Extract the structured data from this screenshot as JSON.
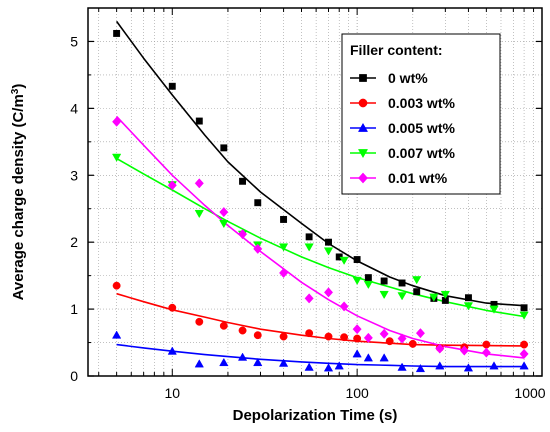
{
  "chart_data": {
    "type": "scatter",
    "xlabel": "Depolarization Time (s)",
    "ylabel": "Average charge density (C/m",
    "ylabel_sup": "3",
    "ylabel_close": ")",
    "xscale": "log",
    "xlim": [
      3.5,
      1000
    ],
    "ylim": [
      0,
      5.5
    ],
    "x_ticks": [
      10,
      100,
      1000
    ],
    "x_tick_labels": [
      "10",
      "100",
      "1000"
    ],
    "y_ticks": [
      0,
      1,
      2,
      3,
      4,
      5
    ],
    "y_tick_labels": [
      "0",
      "1",
      "2",
      "3",
      "4",
      "5"
    ],
    "grid": true,
    "legend": {
      "title": "Filler content:",
      "position": "top-right"
    },
    "series": [
      {
        "name": "0 wt%",
        "color": "#000000",
        "marker": "square",
        "points": [
          [
            5,
            5.12
          ],
          [
            10,
            4.33
          ],
          [
            14,
            3.81
          ],
          [
            19,
            3.41
          ],
          [
            24,
            2.91
          ],
          [
            29,
            2.59
          ],
          [
            40,
            2.34
          ],
          [
            55,
            2.08
          ],
          [
            70,
            2.0
          ],
          [
            80,
            1.78
          ],
          [
            100,
            1.74
          ],
          [
            115,
            1.47
          ],
          [
            140,
            1.42
          ],
          [
            175,
            1.39
          ],
          [
            210,
            1.26
          ],
          [
            260,
            1.16
          ],
          [
            300,
            1.13
          ],
          [
            400,
            1.17
          ],
          [
            550,
            1.07
          ],
          [
            800,
            1.02
          ]
        ],
        "fit": [
          [
            5,
            5.3
          ],
          [
            7,
            4.75
          ],
          [
            10,
            4.2
          ],
          [
            15,
            3.6
          ],
          [
            20,
            3.2
          ],
          [
            30,
            2.75
          ],
          [
            50,
            2.28
          ],
          [
            70,
            1.98
          ],
          [
            100,
            1.72
          ],
          [
            150,
            1.48
          ],
          [
            200,
            1.35
          ],
          [
            300,
            1.2
          ],
          [
            500,
            1.09
          ],
          [
            800,
            1.05
          ]
        ]
      },
      {
        "name": "0.003 wt%",
        "color": "#ff0000",
        "marker": "circle",
        "points": [
          [
            5,
            1.35
          ],
          [
            10,
            1.02
          ],
          [
            14,
            0.81
          ],
          [
            19,
            0.75
          ],
          [
            24,
            0.68
          ],
          [
            29,
            0.61
          ],
          [
            40,
            0.59
          ],
          [
            55,
            0.64
          ],
          [
            70,
            0.59
          ],
          [
            85,
            0.58
          ],
          [
            100,
            0.56
          ],
          [
            150,
            0.52
          ],
          [
            200,
            0.48
          ],
          [
            280,
            0.42
          ],
          [
            380,
            0.43
          ],
          [
            500,
            0.47
          ],
          [
            800,
            0.47
          ]
        ],
        "fit": [
          [
            5,
            1.23
          ],
          [
            7,
            1.11
          ],
          [
            10,
            0.99
          ],
          [
            15,
            0.88
          ],
          [
            20,
            0.8
          ],
          [
            30,
            0.7
          ],
          [
            50,
            0.61
          ],
          [
            70,
            0.56
          ],
          [
            100,
            0.52
          ],
          [
            150,
            0.49
          ],
          [
            200,
            0.47
          ],
          [
            300,
            0.46
          ],
          [
            500,
            0.455
          ],
          [
            800,
            0.45
          ]
        ]
      },
      {
        "name": "0.005 wt%",
        "color": "#0000ff",
        "marker": "triangle-up",
        "points": [
          [
            5,
            0.61
          ],
          [
            10,
            0.37
          ],
          [
            14,
            0.18
          ],
          [
            19,
            0.2
          ],
          [
            24,
            0.28
          ],
          [
            29,
            0.2
          ],
          [
            40,
            0.19
          ],
          [
            55,
            0.13
          ],
          [
            70,
            0.12
          ],
          [
            80,
            0.15
          ],
          [
            100,
            0.33
          ],
          [
            115,
            0.27
          ],
          [
            140,
            0.27
          ],
          [
            175,
            0.13
          ],
          [
            220,
            0.11
          ],
          [
            280,
            0.15
          ],
          [
            400,
            0.12
          ],
          [
            550,
            0.15
          ],
          [
            800,
            0.15
          ]
        ],
        "fit": [
          [
            5,
            0.47
          ],
          [
            7,
            0.42
          ],
          [
            10,
            0.37
          ],
          [
            15,
            0.32
          ],
          [
            20,
            0.29
          ],
          [
            30,
            0.25
          ],
          [
            50,
            0.21
          ],
          [
            70,
            0.19
          ],
          [
            100,
            0.17
          ],
          [
            150,
            0.16
          ],
          [
            200,
            0.15
          ],
          [
            300,
            0.14
          ],
          [
            500,
            0.14
          ],
          [
            800,
            0.14
          ]
        ]
      },
      {
        "name": "0.007 wt%",
        "color": "#00ff00",
        "marker": "triangle-down",
        "points": [
          [
            5,
            3.27
          ],
          [
            10,
            2.86
          ],
          [
            14,
            2.43
          ],
          [
            19,
            2.28
          ],
          [
            24,
            2.12
          ],
          [
            29,
            1.96
          ],
          [
            40,
            1.93
          ],
          [
            55,
            1.93
          ],
          [
            70,
            1.87
          ],
          [
            85,
            1.73
          ],
          [
            100,
            1.43
          ],
          [
            115,
            1.37
          ],
          [
            140,
            1.22
          ],
          [
            175,
            1.2
          ],
          [
            210,
            1.44
          ],
          [
            260,
            1.18
          ],
          [
            300,
            1.22
          ],
          [
            400,
            1.05
          ],
          [
            550,
            1.0
          ],
          [
            800,
            0.91
          ]
        ],
        "fit": [
          [
            5,
            3.25
          ],
          [
            7,
            3.02
          ],
          [
            10,
            2.78
          ],
          [
            15,
            2.5
          ],
          [
            20,
            2.31
          ],
          [
            30,
            2.06
          ],
          [
            50,
            1.78
          ],
          [
            70,
            1.62
          ],
          [
            100,
            1.47
          ],
          [
            150,
            1.33
          ],
          [
            200,
            1.23
          ],
          [
            300,
            1.11
          ],
          [
            500,
            0.98
          ],
          [
            800,
            0.89
          ]
        ]
      },
      {
        "name": "0.01 wt%",
        "color": "#ff00ff",
        "marker": "diamond",
        "points": [
          [
            5,
            3.8
          ],
          [
            10,
            2.85
          ],
          [
            14,
            2.88
          ],
          [
            19,
            2.45
          ],
          [
            24,
            2.12
          ],
          [
            29,
            1.9
          ],
          [
            40,
            1.54
          ],
          [
            55,
            1.16
          ],
          [
            70,
            1.25
          ],
          [
            85,
            1.04
          ],
          [
            100,
            0.7
          ],
          [
            115,
            0.57
          ],
          [
            140,
            0.63
          ],
          [
            175,
            0.56
          ],
          [
            220,
            0.64
          ],
          [
            280,
            0.41
          ],
          [
            380,
            0.38
          ],
          [
            500,
            0.35
          ],
          [
            800,
            0.33
          ]
        ],
        "fit": [
          [
            5,
            3.88
          ],
          [
            7,
            3.45
          ],
          [
            10,
            3.0
          ],
          [
            15,
            2.55
          ],
          [
            20,
            2.25
          ],
          [
            30,
            1.86
          ],
          [
            50,
            1.4
          ],
          [
            70,
            1.14
          ],
          [
            100,
            0.9
          ],
          [
            150,
            0.68
          ],
          [
            200,
            0.56
          ],
          [
            300,
            0.44
          ],
          [
            500,
            0.33
          ],
          [
            800,
            0.27
          ]
        ]
      }
    ]
  }
}
